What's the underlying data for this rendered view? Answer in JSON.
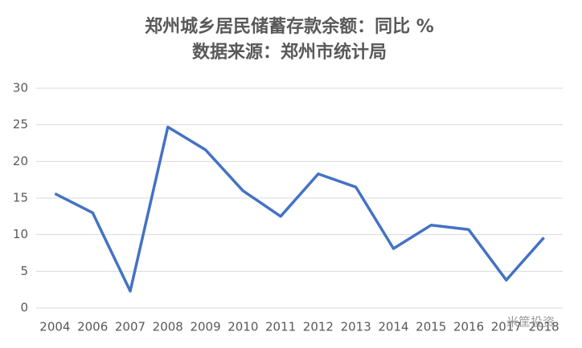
{
  "chart_data": {
    "type": "line",
    "title": "郑州城乡居民储蓄存款余额：同比 %",
    "subtitle": "数据来源：郑州市统计局",
    "categories": [
      "2004",
      "2006",
      "2007",
      "2008",
      "2009",
      "2010",
      "2011",
      "2012",
      "2013",
      "2014",
      "2015",
      "2016",
      "2017",
      "2018"
    ],
    "values": [
      15.6,
      13.0,
      2.3,
      24.7,
      21.6,
      16.0,
      12.5,
      18.3,
      16.5,
      8.1,
      11.3,
      10.7,
      3.8,
      9.6
    ],
    "color": "#4472c4",
    "ylim": [
      0,
      30
    ],
    "yticks": [
      0,
      5,
      10,
      15,
      20,
      25,
      30
    ],
    "grid": true,
    "watermark": "米筐投资"
  }
}
